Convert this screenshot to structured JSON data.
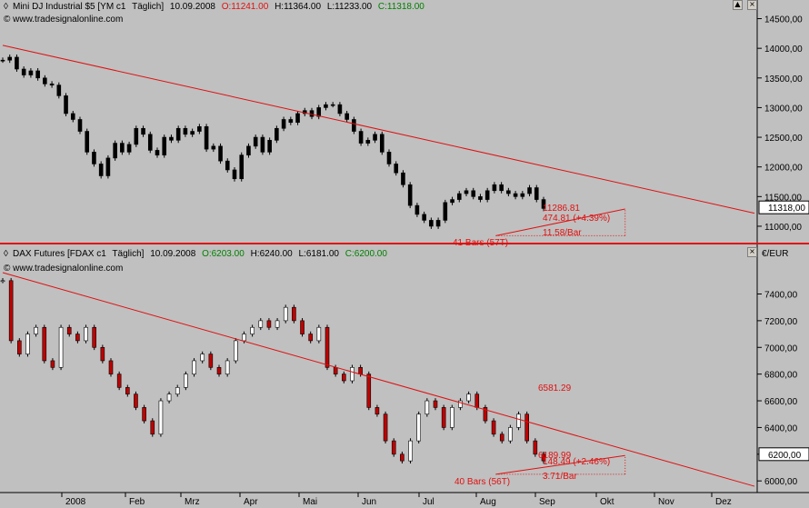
{
  "chart_data": [
    {
      "type": "candlestick",
      "header": {
        "symbol": "Mini DJ Industrial $5 [YM c1",
        "interval": "Täglich]",
        "date": "10.09.2008",
        "open_label": "O:11241.00",
        "high_label": "H:11364.00",
        "low_label": "L:11233.00",
        "close_label": "C:11318.00"
      },
      "source": "© www.tradesignalonline.com",
      "ylim": [
        10800,
        14600
      ],
      "y_ticks": [
        11000,
        11500,
        12000,
        12500,
        13000,
        13500,
        14000,
        14500
      ],
      "y_tick_labels": [
        "11000,00",
        "11500,00",
        "12000,00",
        "12500,00",
        "13000,00",
        "13500,00",
        "14000,00",
        "14500,00"
      ],
      "last_price_label": "11318,00",
      "last_price": 11318,
      "closes": [
        13800,
        13850,
        13650,
        13550,
        13620,
        13500,
        13400,
        13380,
        13200,
        12900,
        12800,
        12600,
        12250,
        12050,
        11850,
        12150,
        12400,
        12250,
        12380,
        12650,
        12550,
        12280,
        12200,
        12500,
        12450,
        12650,
        12550,
        12600,
        12680,
        12300,
        12350,
        12100,
        11950,
        11800,
        12200,
        12350,
        12500,
        12250,
        12450,
        12650,
        12800,
        12750,
        12900,
        12950,
        12850,
        13000,
        13050,
        13050,
        12900,
        12800,
        12600,
        12400,
        12450,
        12550,
        12250,
        12050,
        11900,
        11700,
        11350,
        11200,
        11100,
        11000,
        11100,
        11400,
        11450,
        11550,
        11600,
        11500,
        11450,
        11600,
        11700,
        11600,
        11550,
        11500,
        11550,
        11650,
        11450,
        11300
      ],
      "trendline": {
        "start": [
          0,
          14050
        ],
        "end": [
          93,
          11220
        ]
      },
      "swing_line": {
        "start": [
          61,
          10840
        ],
        "end": [
          77,
          11290
        ]
      },
      "annotations": {
        "price": "11286.81",
        "change": "474.81 (+4.39%)",
        "per_bar": "11.58/Bar",
        "bars": "41 Bars (57T)"
      },
      "x_months": [
        "2008",
        "Feb",
        "Mrz",
        "Apr",
        "Mai",
        "Jun",
        "Jul",
        "Aug",
        "Sep",
        "Okt",
        "Nov",
        "Dez"
      ],
      "colors": {
        "bull": "#000000",
        "bear": "#000000",
        "line": "#e01010"
      }
    },
    {
      "type": "candlestick",
      "header": {
        "symbol": "DAX Futures [FDAX c1",
        "interval": "Täglich]",
        "date": "10.09.2008",
        "open_label": "O:6203.00",
        "high_label": "H:6240.00",
        "low_label": "L:6181.00",
        "close_label": "C:6200.00"
      },
      "source": "© www.tradesignalonline.com",
      "unit": "€/EUR",
      "ylim": [
        5940,
        7560
      ],
      "y_ticks": [
        6000,
        6200,
        6400,
        6600,
        6800,
        7000,
        7200,
        7400
      ],
      "y_tick_labels": [
        "6000,00",
        "6200,00",
        "6400,00",
        "6600,00",
        "6800,00",
        "7000,00",
        "7200,00",
        "7400,00"
      ],
      "last_price_label": "6200,00",
      "last_price": 6200,
      "closes": [
        7500,
        7050,
        6950,
        7100,
        7150,
        6900,
        6850,
        7150,
        7100,
        7050,
        7150,
        7000,
        6900,
        6800,
        6700,
        6650,
        6550,
        6450,
        6350,
        6600,
        6650,
        6700,
        6800,
        6900,
        6950,
        6850,
        6800,
        6900,
        7050,
        7100,
        7150,
        7200,
        7150,
        7200,
        7300,
        7200,
        7100,
        7050,
        7150,
        6850,
        6800,
        6750,
        6850,
        6800,
        6550,
        6500,
        6300,
        6200,
        6150,
        6300,
        6500,
        6600,
        6550,
        6400,
        6550,
        6600,
        6650,
        6550,
        6450,
        6350,
        6300,
        6400,
        6500,
        6300,
        6200,
        6150
      ],
      "trendline": {
        "start": [
          0,
          7560
        ],
        "end": [
          93,
          5960
        ]
      },
      "swing_line": {
        "start": [
          61,
          6050
        ],
        "end": [
          77,
          6190
        ]
      },
      "annotations": {
        "trend_value": "6581.29",
        "price": "6189.99",
        "change": "148.49 (+2.46%)",
        "per_bar": "3.71/Bar",
        "bars": "40 Bars (56T)"
      },
      "x_months": [
        "2008",
        "Feb",
        "Mrz",
        "Apr",
        "Mai",
        "Jun",
        "Jul",
        "Aug",
        "Sep",
        "Okt",
        "Nov",
        "Dez"
      ],
      "colors": {
        "bull": "#ffffff",
        "bear": "#c00000",
        "line": "#e01010"
      }
    }
  ],
  "window_buttons": {
    "top_up": "▲",
    "top_close": "×",
    "bottom_close": "×"
  }
}
